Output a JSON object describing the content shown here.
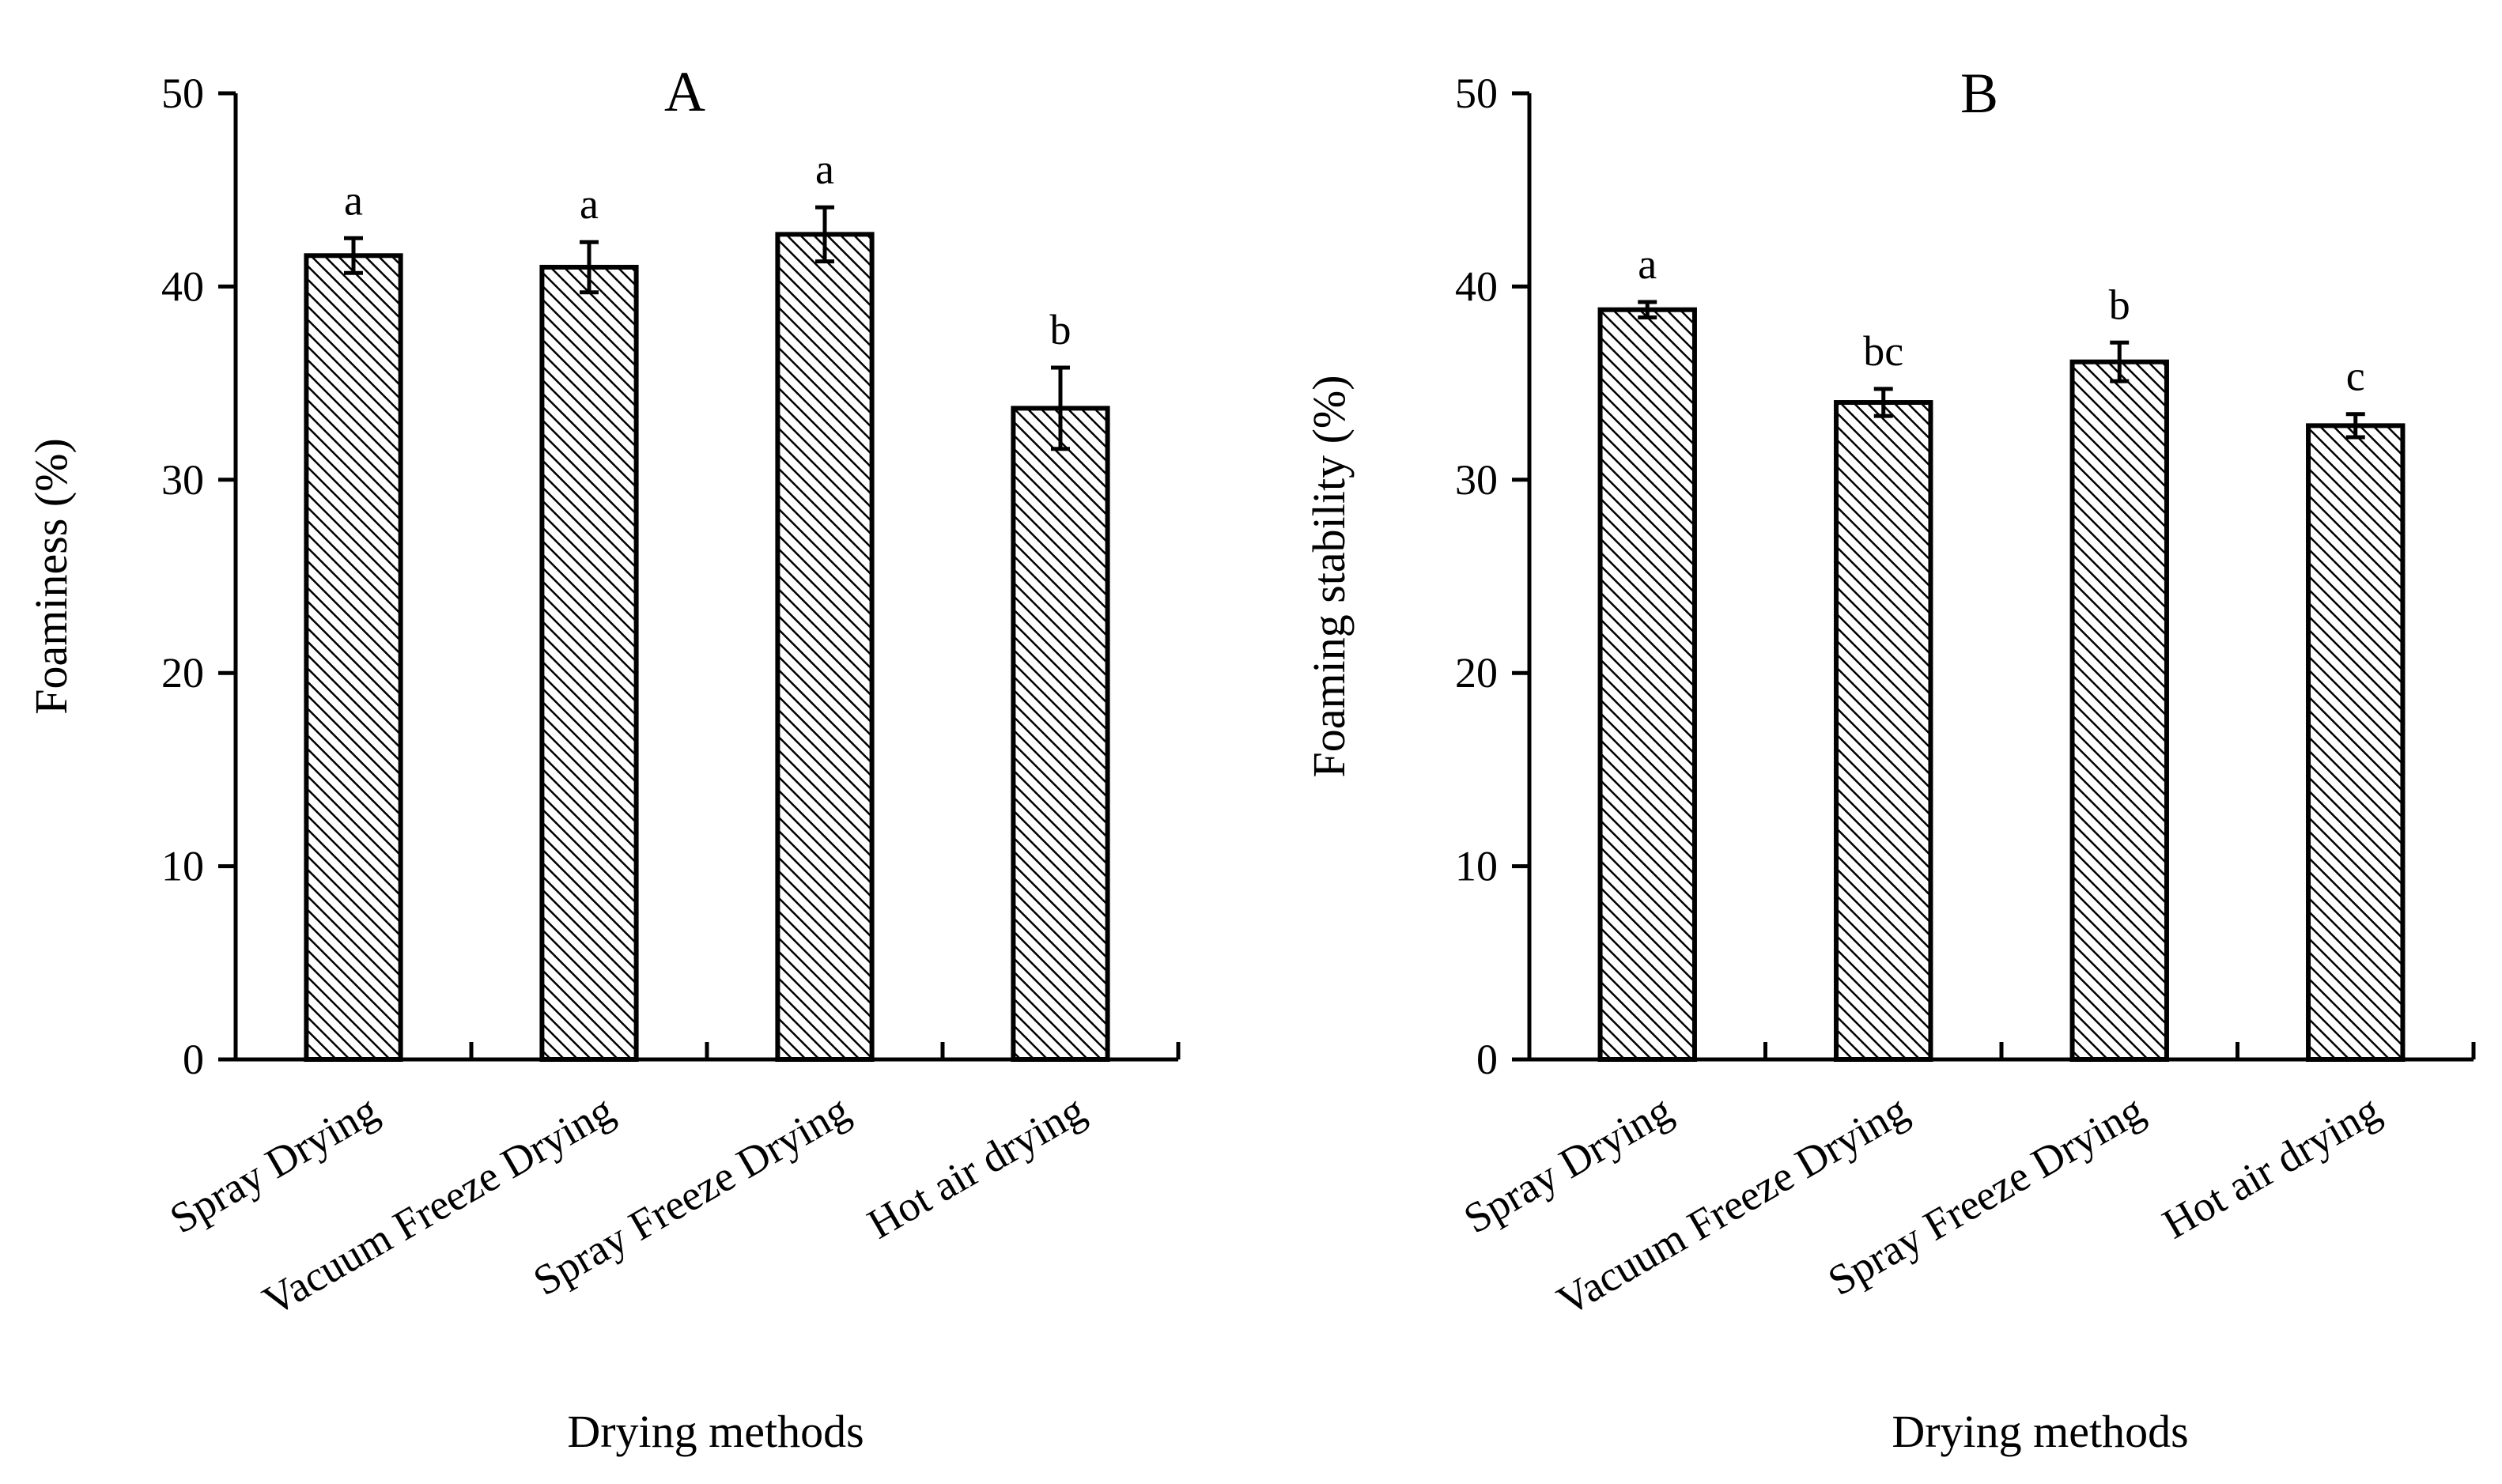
{
  "chart_data": [
    {
      "type": "bar",
      "title": "A",
      "xlabel": "Drying methods",
      "ylabel": "Foaminess (%)",
      "ylim": [
        0,
        50
      ],
      "yticks": [
        0,
        10,
        20,
        30,
        40,
        50
      ],
      "categories": [
        "Spray Drying",
        "Vacuum Freeze Drying",
        "Spray Freeze Drying",
        "Hot air drying"
      ],
      "values": [
        41.6,
        41.0,
        42.7,
        33.7
      ],
      "errors": [
        0.9,
        1.3,
        1.4,
        2.1
      ],
      "significance": [
        "a",
        "a",
        "a",
        "b"
      ]
    },
    {
      "type": "bar",
      "title": "B",
      "xlabel": "Drying methods",
      "ylabel": "Foaming stability (%)",
      "ylim": [
        0,
        50
      ],
      "yticks": [
        0,
        10,
        20,
        30,
        40,
        50
      ],
      "categories": [
        "Spray Drying",
        "Vacuum Freeze Drying",
        "Spray Freeze Drying",
        "Hot air drying"
      ],
      "values": [
        38.8,
        34.0,
        36.1,
        32.8
      ],
      "errors": [
        0.4,
        0.7,
        1.0,
        0.6
      ],
      "significance": [
        "a",
        "bc",
        "b",
        "c"
      ]
    }
  ]
}
